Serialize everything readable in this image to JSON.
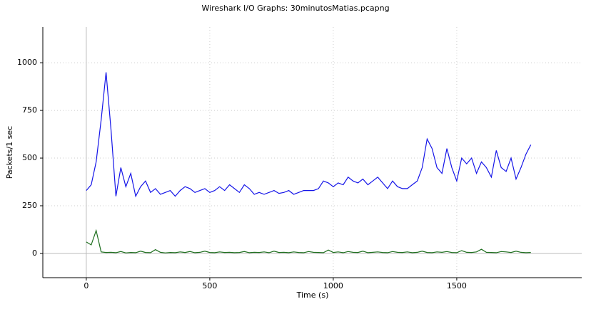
{
  "chart_data": {
    "type": "line",
    "title": "Wireshark I/O Graphs: 30minutosMatias.pcapng",
    "x_label": "Time (s)",
    "y_label": "Packets/1 sec",
    "x": [
      0,
      20,
      40,
      60,
      80,
      100,
      120,
      140,
      160,
      180,
      200,
      220,
      240,
      260,
      280,
      300,
      320,
      340,
      360,
      380,
      400,
      420,
      440,
      460,
      480,
      500,
      520,
      540,
      560,
      580,
      600,
      620,
      640,
      660,
      680,
      700,
      720,
      740,
      760,
      780,
      800,
      820,
      840,
      860,
      880,
      900,
      920,
      940,
      960,
      980,
      1000,
      1020,
      1040,
      1060,
      1080,
      1100,
      1120,
      1140,
      1160,
      1180,
      1200,
      1220,
      1240,
      1260,
      1280,
      1300,
      1320,
      1340,
      1360,
      1380,
      1400,
      1420,
      1440,
      1460,
      1480,
      1500,
      1520,
      1540,
      1560,
      1580,
      1600,
      1620,
      1640,
      1660,
      1680,
      1700,
      1720,
      1740,
      1760,
      1780,
      1800
    ],
    "series": [
      {
        "color": "#1515e8",
        "values": [
          330,
          360,
          480,
          700,
          950,
          650,
          300,
          450,
          350,
          420,
          300,
          350,
          380,
          320,
          340,
          310,
          320,
          330,
          300,
          330,
          350,
          340,
          320,
          330,
          340,
          320,
          330,
          350,
          330,
          360,
          340,
          320,
          360,
          340,
          310,
          320,
          310,
          320,
          330,
          315,
          320,
          330,
          310,
          320,
          330,
          330,
          330,
          340,
          380,
          370,
          350,
          370,
          360,
          400,
          380,
          370,
          390,
          360,
          380,
          400,
          370,
          340,
          380,
          350,
          340,
          340,
          360,
          380,
          450,
          600,
          550,
          450,
          420,
          550,
          450,
          380,
          500,
          470,
          500,
          420,
          480,
          450,
          400,
          540,
          450,
          430,
          500,
          390,
          450,
          520,
          570
        ]
      },
      {
        "color": "#1e6e1e",
        "values": [
          60,
          45,
          120,
          8,
          5,
          6,
          4,
          10,
          3,
          5,
          4,
          12,
          5,
          4,
          20,
          6,
          3,
          5,
          4,
          8,
          5,
          10,
          4,
          6,
          12,
          5,
          4,
          8,
          5,
          6,
          4,
          5,
          10,
          4,
          6,
          5,
          8,
          4,
          12,
          5,
          6,
          4,
          8,
          5,
          4,
          10,
          6,
          5,
          4,
          18,
          5,
          8,
          4,
          10,
          6,
          5,
          12,
          4,
          6,
          8,
          5,
          4,
          10,
          6,
          5,
          8,
          4,
          6,
          12,
          5,
          4,
          8,
          6,
          10,
          5,
          4,
          15,
          6,
          5,
          8,
          22,
          6,
          5,
          4,
          10,
          8,
          5,
          12,
          6,
          4,
          5
        ]
      }
    ],
    "xlim": [
      -176,
      2006
    ],
    "ylim": [
      -127,
      1187
    ],
    "xticks": [
      0,
      500,
      1000,
      1500
    ],
    "yticks": [
      0,
      250,
      500,
      750,
      1000
    ],
    "grid": true
  }
}
